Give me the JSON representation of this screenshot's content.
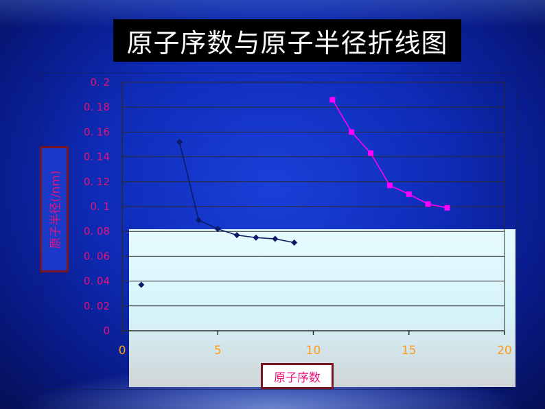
{
  "title": "原子序数与原子半径折线图",
  "colors": {
    "series1": "#0a1a66",
    "series2": "#ff00ff",
    "axis_label": "#e8127a",
    "tick_label": "#e8127a",
    "x_tick_label": "#ff9a1a",
    "grid": "#2b2b2b"
  },
  "chart_data": {
    "type": "line",
    "title": "",
    "xlabel": "原子序数",
    "ylabel": "原子半径(/nm)",
    "xlim": [
      0,
      20
    ],
    "ylim": [
      0,
      0.2
    ],
    "grid": true,
    "x_ticks": [
      "0",
      "5",
      "10",
      "15",
      "20"
    ],
    "y_ticks": [
      "0",
      "0. 02",
      "0. 04",
      "0. 06",
      "0. 08",
      "0. 1",
      "0. 12",
      "0. 14",
      "0. 16",
      "0. 18",
      "0. 2"
    ],
    "series": [
      {
        "marker": "diamond",
        "points": [
          {
            "x": 1,
            "y": 0.037
          },
          {
            "x": 3,
            "y": 0.152
          },
          {
            "x": 4,
            "y": 0.089
          },
          {
            "x": 5,
            "y": 0.082
          },
          {
            "x": 6,
            "y": 0.077
          },
          {
            "x": 7,
            "y": 0.075
          },
          {
            "x": 8,
            "y": 0.074
          },
          {
            "x": 9,
            "y": 0.071
          }
        ]
      },
      {
        "marker": "square",
        "points": [
          {
            "x": 11,
            "y": 0.186
          },
          {
            "x": 12,
            "y": 0.16
          },
          {
            "x": 13,
            "y": 0.143
          },
          {
            "x": 14,
            "y": 0.117
          },
          {
            "x": 15,
            "y": 0.11
          },
          {
            "x": 16,
            "y": 0.102
          },
          {
            "x": 17,
            "y": 0.099
          }
        ]
      }
    ]
  }
}
